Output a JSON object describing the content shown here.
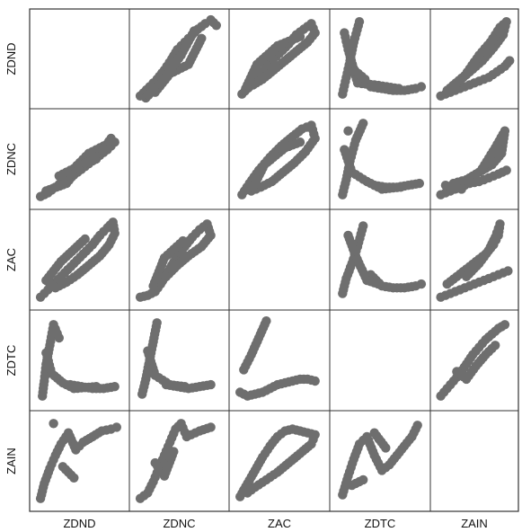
{
  "chart_data": {
    "type": "scatter",
    "variables": [
      "ZDND",
      "ZDNC",
      "ZAC",
      "ZDTC",
      "ZAIN"
    ],
    "layout": "scatterplot-matrix",
    "diagonal": "empty",
    "point_color": "#6e6e6e",
    "frame_color": "#333333",
    "panels": [
      {
        "row": 0,
        "col": 1,
        "x": [
          0.2,
          0.7,
          1.1,
          1.5,
          1.9,
          2.2,
          2.6,
          3.0,
          3.3,
          3.7,
          4.0,
          4.3,
          1.0,
          1.8,
          2.8,
          3.5,
          0.5,
          1.4,
          2.4,
          3.1
        ],
        "y": [
          0.3,
          0.8,
          1.2,
          1.7,
          2.3,
          2.8,
          3.2,
          3.6,
          3.9,
          4.2,
          4.4,
          4.1,
          0.5,
          1.5,
          2.0,
          3.4,
          0.2,
          1.1,
          2.5,
          3.8
        ]
      },
      {
        "row": 0,
        "col": 2,
        "x": [
          0.3,
          0.8,
          1.3,
          1.8,
          2.3,
          2.8,
          3.2,
          3.6,
          4.0,
          4.2,
          3.8,
          3.2,
          2.6,
          2.0,
          1.4,
          0.9,
          0.5,
          1.1,
          2.2,
          3.4
        ],
        "y": [
          0.4,
          0.9,
          1.5,
          2.1,
          2.6,
          3.1,
          3.6,
          3.9,
          4.2,
          3.7,
          3.2,
          2.7,
          2.2,
          1.7,
          1.2,
          0.9,
          0.7,
          2.0,
          3.0,
          3.5
        ]
      },
      {
        "row": 0,
        "col": 3,
        "x": [
          0.3,
          0.5,
          0.7,
          0.9,
          1.2,
          1.8,
          2.4,
          3.0,
          3.6,
          4.2,
          4.5,
          0.4,
          0.6,
          1.1,
          2.0,
          3.3,
          0.8,
          1.5
        ],
        "y": [
          0.4,
          1.3,
          2.2,
          3.2,
          4.3,
          0.8,
          0.7,
          0.6,
          0.6,
          0.7,
          0.8,
          3.7,
          2.8,
          1.0,
          0.9,
          0.7,
          1.8,
          1.2
        ]
      },
      {
        "row": 0,
        "col": 4,
        "x": [
          0.2,
          0.8,
          1.4,
          2.0,
          2.6,
          3.2,
          3.7,
          4.2,
          4.5,
          1.2,
          2.0,
          2.8,
          3.5,
          4.1,
          4.3,
          3.9,
          3.3,
          2.6,
          1.7,
          0.6
        ],
        "y": [
          0.3,
          0.5,
          0.7,
          0.9,
          1.1,
          1.3,
          1.6,
          1.9,
          2.2,
          1.0,
          1.6,
          2.2,
          2.9,
          3.6,
          4.3,
          4.0,
          3.2,
          2.5,
          1.4,
          0.6
        ]
      },
      {
        "row": 1,
        "col": 0,
        "x": [
          0.2,
          0.6,
          1.0,
          1.4,
          1.8,
          2.2,
          2.6,
          3.0,
          3.4,
          3.8,
          4.2,
          1.2,
          2.0,
          2.8,
          3.6,
          0.5,
          1.6,
          2.4,
          3.2,
          4.0
        ],
        "y": [
          0.3,
          0.5,
          0.8,
          1.1,
          1.3,
          1.6,
          1.9,
          2.2,
          2.5,
          2.8,
          3.2,
          1.4,
          1.8,
          2.6,
          3.0,
          0.6,
          1.0,
          2.0,
          2.3,
          3.4
        ]
      },
      {
        "row": 1,
        "col": 2,
        "x": [
          0.3,
          0.7,
          1.2,
          1.8,
          2.4,
          3.0,
          3.5,
          4.0,
          4.2,
          3.7,
          3.1,
          2.5,
          1.9,
          1.3,
          0.8,
          1.5,
          2.6,
          3.4
        ],
        "y": [
          0.4,
          1.0,
          1.7,
          2.4,
          3.0,
          3.5,
          3.9,
          4.1,
          3.4,
          2.7,
          2.1,
          1.6,
          1.1,
          0.8,
          0.6,
          2.0,
          2.9,
          3.2
        ]
      },
      {
        "row": 1,
        "col": 3,
        "x": [
          0.3,
          0.5,
          0.7,
          1.0,
          1.4,
          2.0,
          2.6,
          3.2,
          3.8,
          4.4,
          0.4,
          0.8,
          1.6,
          2.4,
          3.4,
          0.6
        ],
        "y": [
          0.4,
          1.2,
          2.2,
          3.3,
          4.2,
          0.9,
          0.8,
          0.8,
          0.9,
          1.0,
          2.8,
          1.6,
          1.1,
          0.7,
          0.8,
          3.8
        ]
      },
      {
        "row": 1,
        "col": 4,
        "x": [
          0.2,
          0.8,
          1.4,
          2.0,
          2.6,
          3.2,
          3.8,
          4.3,
          1.0,
          1.8,
          2.6,
          3.4,
          4.0,
          4.2,
          3.6,
          2.8,
          0.5,
          1.5
        ],
        "y": [
          0.4,
          0.6,
          0.8,
          1.0,
          1.1,
          1.3,
          1.5,
          1.7,
          1.0,
          1.2,
          1.6,
          2.0,
          2.6,
          3.8,
          2.9,
          1.8,
          0.9,
          0.7
        ]
      },
      {
        "row": 2,
        "col": 0,
        "x": [
          0.2,
          0.6,
          1.0,
          1.5,
          2.0,
          2.5,
          3.0,
          3.4,
          3.8,
          4.1,
          4.2,
          3.9,
          3.4,
          2.8,
          2.2,
          1.6,
          1.0,
          0.5,
          1.3,
          2.6
        ],
        "y": [
          0.3,
          0.7,
          1.1,
          1.6,
          2.1,
          2.6,
          3.1,
          3.6,
          4.0,
          4.3,
          3.7,
          3.1,
          2.5,
          2.0,
          1.5,
          1.1,
          0.8,
          1.2,
          2.2,
          3.4
        ]
      },
      {
        "row": 2,
        "col": 1,
        "x": [
          0.2,
          0.6,
          1.0,
          1.3,
          1.6,
          1.9,
          2.2,
          2.6,
          3.0,
          3.4,
          3.8,
          4.0,
          3.5,
          2.8,
          2.2,
          1.6,
          0.9,
          1.5,
          2.5
        ],
        "y": [
          0.3,
          0.4,
          0.6,
          1.0,
          1.5,
          2.0,
          2.5,
          3.0,
          3.5,
          3.9,
          4.2,
          3.6,
          3.0,
          2.5,
          2.0,
          1.4,
          0.9,
          2.4,
          3.3
        ]
      },
      {
        "row": 2,
        "col": 3,
        "x": [
          0.3,
          0.5,
          0.8,
          1.1,
          1.4,
          1.8,
          2.4,
          3.0,
          3.6,
          4.2,
          4.5,
          0.6,
          1.0,
          1.6,
          2.2
        ],
        "y": [
          0.5,
          1.3,
          2.1,
          3.0,
          4.1,
          1.5,
          0.9,
          0.8,
          0.8,
          0.9,
          1.0,
          3.6,
          2.5,
          1.2,
          1.0
        ]
      },
      {
        "row": 2,
        "col": 4,
        "x": [
          0.2,
          0.8,
          1.4,
          2.0,
          2.6,
          3.2,
          3.8,
          4.4,
          0.6,
          1.2,
          1.8,
          2.4,
          3.0,
          3.5,
          3.8,
          3.9,
          3.6,
          3.2,
          2.6,
          1.8
        ],
        "y": [
          0.3,
          0.5,
          0.7,
          0.9,
          1.1,
          1.3,
          1.5,
          1.7,
          1.0,
          1.4,
          1.8,
          2.2,
          2.6,
          3.1,
          3.6,
          4.2,
          3.5,
          2.8,
          2.1,
          1.4
        ]
      },
      {
        "row": 3,
        "col": 0,
        "x": [
          0.3,
          0.4,
          0.5,
          0.7,
          0.9,
          1.2,
          1.8,
          2.4,
          3.0,
          3.6,
          4.2,
          0.5,
          0.8,
          1.4,
          2.0,
          3.2
        ],
        "y": [
          0.4,
          1.2,
          2.1,
          3.1,
          4.2,
          3.5,
          1.0,
          0.9,
          0.8,
          0.8,
          0.9,
          2.7,
          1.6,
          1.1,
          0.8,
          0.9
        ]
      },
      {
        "row": 3,
        "col": 1,
        "x": [
          0.3,
          0.5,
          0.7,
          0.9,
          1.1,
          1.6,
          2.2,
          2.8,
          3.4,
          4.0,
          0.6,
          1.0,
          1.8,
          2.6
        ],
        "y": [
          0.5,
          1.3,
          2.3,
          3.3,
          4.3,
          1.0,
          0.9,
          0.8,
          0.9,
          1.0,
          2.8,
          1.5,
          1.0,
          0.9
        ]
      },
      {
        "row": 3,
        "col": 2,
        "x": [
          0.2,
          0.6,
          1.0,
          1.4,
          1.8,
          2.2,
          2.6,
          3.0,
          3.4,
          3.8,
          4.2,
          0.4,
          0.8,
          1.2,
          1.6
        ],
        "y": [
          0.6,
          0.4,
          0.5,
          0.6,
          0.8,
          1.0,
          1.1,
          1.2,
          1.3,
          1.3,
          1.2,
          1.8,
          2.6,
          3.5,
          4.4
        ]
      },
      {
        "row": 3,
        "col": 4,
        "x": [
          0.2,
          0.6,
          1.0,
          1.4,
          1.8,
          2.2,
          2.6,
          3.0,
          3.4,
          3.8,
          4.2,
          1.2,
          1.8,
          2.4,
          3.0,
          3.6
        ],
        "y": [
          0.4,
          0.8,
          1.2,
          1.6,
          2.1,
          2.6,
          3.0,
          3.4,
          3.7,
          4.0,
          4.2,
          1.7,
          1.3,
          2.0,
          2.6,
          3.1
        ]
      },
      {
        "row": 4,
        "col": 0,
        "x": [
          0.2,
          0.4,
          0.7,
          1.0,
          1.3,
          1.7,
          2.1,
          2.5,
          3.0,
          3.5,
          4.0,
          4.3,
          0.9,
          1.4,
          2.0
        ],
        "y": [
          0.3,
          1.1,
          1.9,
          2.6,
          3.2,
          3.8,
          2.9,
          3.3,
          3.6,
          3.9,
          4.0,
          4.1,
          4.3,
          2.0,
          1.4
        ]
      },
      {
        "row": 4,
        "col": 1,
        "x": [
          0.2,
          0.6,
          0.9,
          1.2,
          1.5,
          1.8,
          2.1,
          2.4,
          2.7,
          3.4,
          4.0,
          1.0,
          1.5,
          2.0
        ],
        "y": [
          0.3,
          0.6,
          1.2,
          1.9,
          2.6,
          3.3,
          4.0,
          4.3,
          3.6,
          3.9,
          4.1,
          2.2,
          1.5,
          2.8
        ]
      },
      {
        "row": 4,
        "col": 2,
        "x": [
          0.2,
          0.6,
          1.0,
          1.4,
          1.8,
          2.2,
          2.6,
          3.0,
          3.4,
          3.8,
          4.2,
          4.0,
          3.4,
          2.8,
          2.2,
          1.6,
          1.0,
          0.6
        ],
        "y": [
          0.4,
          1.1,
          1.8,
          2.5,
          3.1,
          3.6,
          3.9,
          4.0,
          3.9,
          3.8,
          3.7,
          3.2,
          2.7,
          2.2,
          1.7,
          1.3,
          0.9,
          0.6
        ]
      },
      {
        "row": 4,
        "col": 3,
        "x": [
          0.3,
          0.6,
          0.9,
          1.2,
          1.6,
          2.0,
          2.4,
          2.8,
          3.2,
          3.6,
          4.0,
          4.3,
          0.8,
          1.4,
          2.0,
          2.6
        ],
        "y": [
          0.5,
          1.5,
          2.4,
          3.2,
          3.6,
          2.6,
          1.8,
          2.1,
          2.6,
          3.1,
          3.6,
          4.2,
          1.0,
          1.3,
          3.8,
          3.0
        ]
      }
    ],
    "grid": false,
    "legend": "none"
  }
}
